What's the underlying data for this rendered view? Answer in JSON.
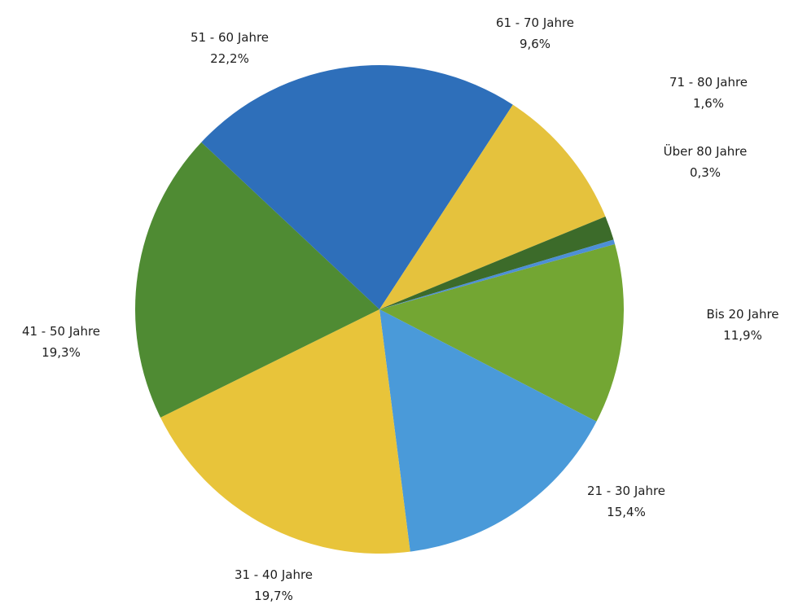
{
  "chart_data": {
    "type": "pie",
    "title": "",
    "series": [
      {
        "values": [
          11.9,
          15.4,
          19.7,
          19.3,
          22.2,
          9.6,
          1.6,
          0.3
        ]
      }
    ],
    "slices": [
      {
        "label": "Bis 20 Jahre",
        "value": 11.9,
        "value_label": "11,9%",
        "color": "#73a633"
      },
      {
        "label": "21 - 30 Jahre",
        "value": 15.4,
        "value_label": "15,4%",
        "color": "#4a9ad9"
      },
      {
        "label": "31 - 40 Jahre",
        "value": 19.7,
        "value_label": "19,7%",
        "color": "#e8c43a"
      },
      {
        "label": "41 - 50 Jahre",
        "value": 19.3,
        "value_label": "19,3%",
        "color": "#4f8b33"
      },
      {
        "label": "51 - 60 Jahre",
        "value": 22.2,
        "value_label": "22,2%",
        "color": "#2e6fba"
      },
      {
        "label": "61 - 70 Jahre",
        "value": 9.6,
        "value_label": "9,6%",
        "color": "#e5c23d"
      },
      {
        "label": "71 - 80 Jahre",
        "value": 1.6,
        "value_label": "1,6%",
        "color": "#3c6b2a"
      },
      {
        "label": "Über 80 Jahre",
        "value": 0.3,
        "value_label": "0,3%",
        "color": "#4d8fd6"
      }
    ],
    "legend": "none"
  }
}
